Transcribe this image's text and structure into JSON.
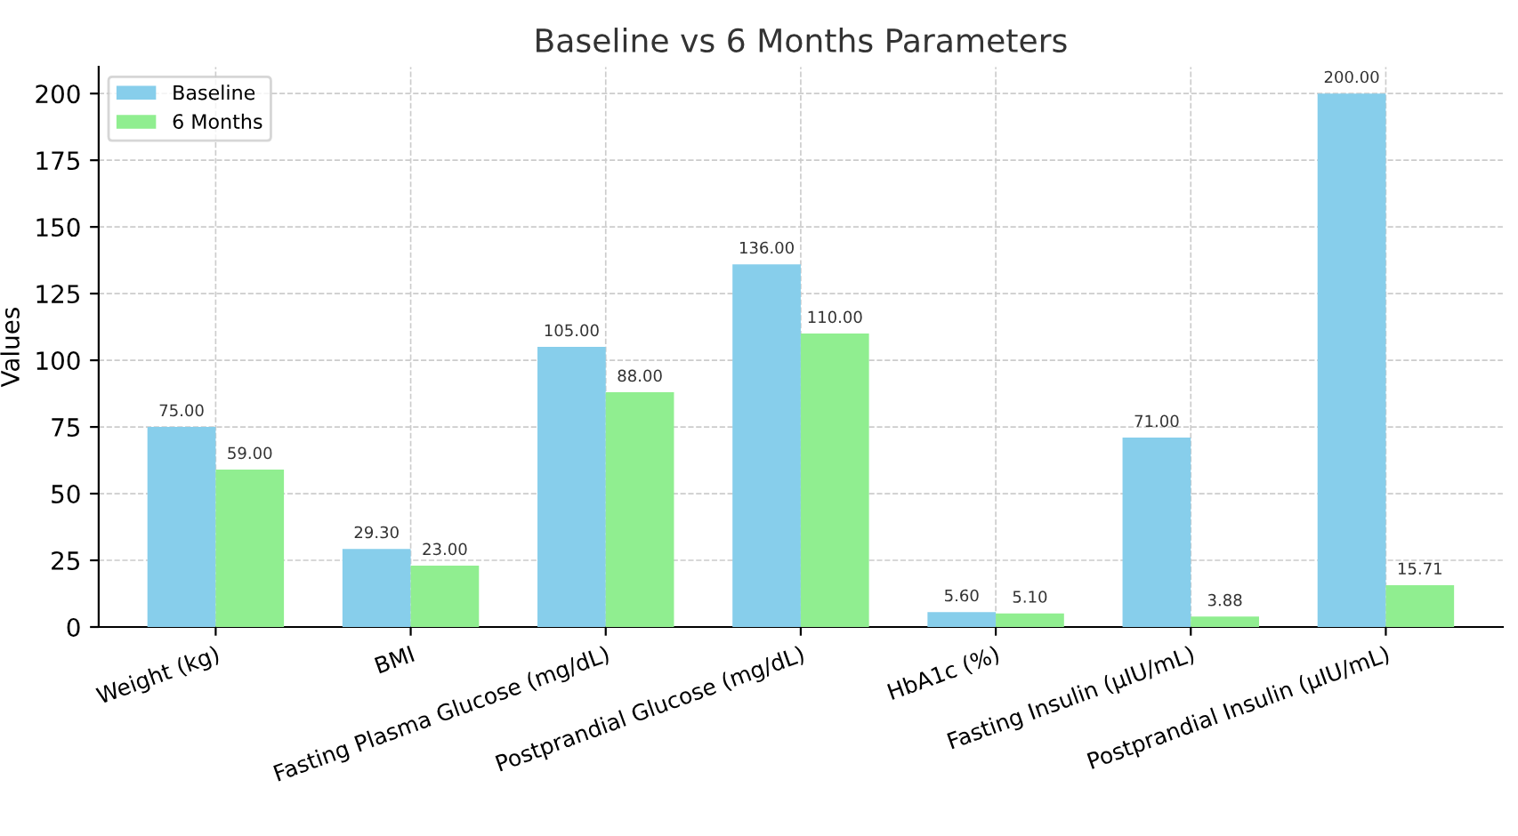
{
  "chart_data": {
    "type": "bar",
    "title": "Baseline vs 6 Months Parameters",
    "ylabel": "Values",
    "categories": [
      "Weight (kg)",
      "BMI",
      "Fasting Plasma Glucose (mg/dL)",
      "Postprandial Glucose (mg/dL)",
      "HbA1c (%)",
      "Fasting Insulin (µIU/mL)",
      "Postprandial Insulin (µIU/mL)"
    ],
    "series": [
      {
        "name": "Baseline",
        "color": "#87ceeb",
        "values": [
          75,
          29.3,
          105,
          136,
          5.6,
          71,
          200
        ],
        "value_labels": [
          "75.00",
          "29.30",
          "105.00",
          "136.00",
          "5.60",
          "71.00",
          "200.00"
        ]
      },
      {
        "name": "6 Months",
        "color": "#90ee90",
        "values": [
          59,
          23,
          88,
          110,
          5.1,
          3.88,
          15.71
        ],
        "value_labels": [
          "59.00",
          "23.00",
          "88.00",
          "110.00",
          "5.10",
          "3.88",
          "15.71"
        ]
      }
    ],
    "ylim": [
      0,
      210
    ],
    "yticks": [
      0,
      25,
      50,
      75,
      100,
      125,
      150,
      175,
      200
    ],
    "grid": true,
    "legend": "top left"
  }
}
